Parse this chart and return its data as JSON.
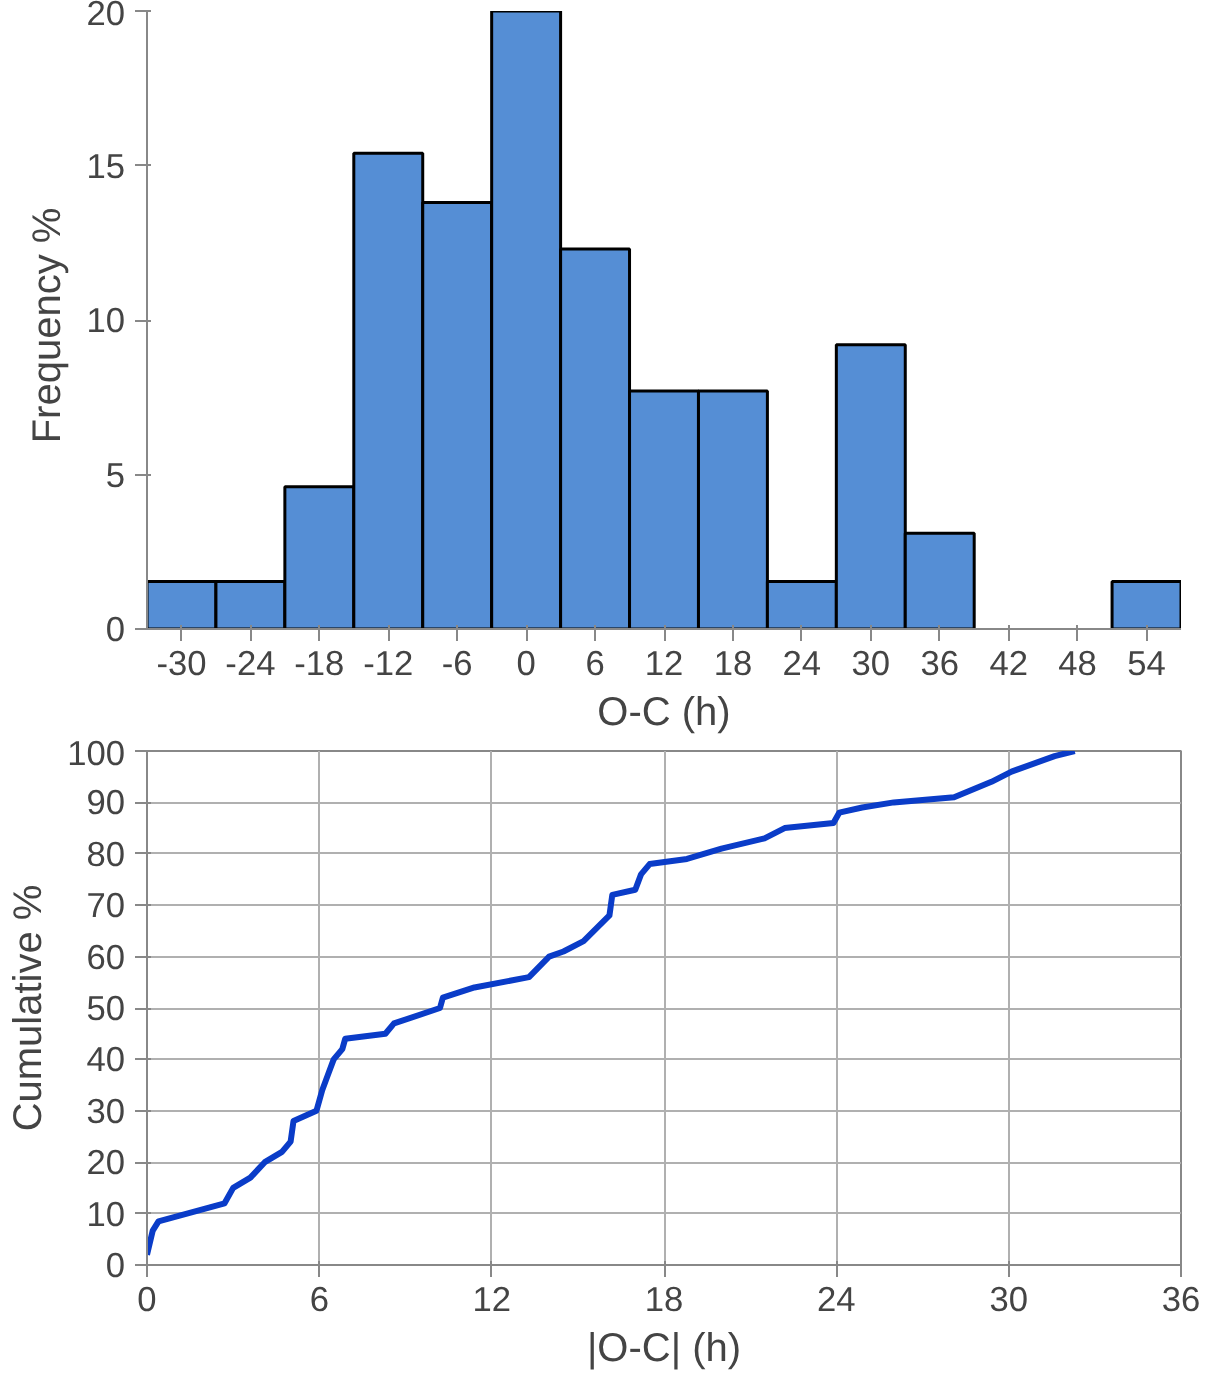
{
  "chart_data": [
    {
      "type": "histogram",
      "xlabel": "O-C (h)",
      "ylabel": "Frequency  %",
      "bins": [
        -33,
        -27,
        -21,
        -15,
        -9,
        -3,
        3,
        9,
        15,
        21,
        27,
        33,
        39,
        45,
        51,
        57
      ],
      "values": [
        1.54,
        1.54,
        4.6,
        15.4,
        13.8,
        20,
        12.3,
        7.7,
        7.7,
        1.54,
        9.2,
        3.1,
        0,
        0,
        1.54
      ],
      "color": "#558ed5",
      "xlim": [
        -33,
        57
      ],
      "xticks": [
        -30,
        -24,
        -18,
        -12,
        -6,
        0,
        6,
        12,
        18,
        24,
        30,
        36,
        42,
        48,
        54
      ],
      "ylim": [
        0,
        20
      ],
      "yticks": [
        0,
        5,
        10,
        15,
        20
      ],
      "grid": false
    },
    {
      "type": "line",
      "xlabel": "|O-C| (h)",
      "ylabel": "Cumulative %",
      "color": "#0a3cc8",
      "grid": true,
      "x": [
        0,
        0.2,
        0.4,
        2.7,
        3.0,
        3.6,
        4.1,
        4.7,
        5.0,
        5.1,
        5.9,
        6.1,
        6.3,
        6.5,
        6.8,
        6.9,
        8.3,
        8.6,
        10.2,
        10.3,
        11.4,
        13.3,
        14.0,
        14.5,
        15.2,
        16.1,
        16.2,
        17.0,
        17.2,
        17.5,
        18.8,
        20,
        21.5,
        22.2,
        23.9,
        24.1,
        24.9,
        26,
        28.1,
        29.4,
        30.1,
        31.6,
        32.3
      ],
      "values": [
        2,
        6.7,
        8.5,
        12,
        15,
        17,
        20,
        22,
        24,
        28,
        30,
        34,
        37,
        40,
        42,
        44,
        45,
        47,
        50,
        52,
        54,
        56,
        60,
        61,
        63,
        68,
        72,
        73,
        76,
        78,
        79,
        81,
        83,
        85,
        86,
        88,
        89,
        90,
        91,
        94,
        96,
        99,
        100
      ],
      "xlim": [
        0,
        36
      ],
      "xticks": [
        0,
        6,
        12,
        18,
        24,
        30,
        36
      ],
      "ylim": [
        0,
        100
      ],
      "yticks": [
        0,
        10,
        20,
        30,
        40,
        50,
        60,
        70,
        80,
        90,
        100
      ]
    }
  ]
}
